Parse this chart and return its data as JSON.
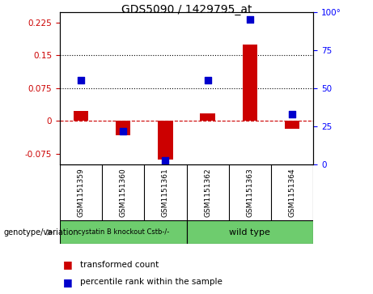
{
  "title": "GDS5090 / 1429795_at",
  "samples": [
    "GSM1151359",
    "GSM1151360",
    "GSM1151361",
    "GSM1151362",
    "GSM1151363",
    "GSM1151364"
  ],
  "transformed_count": [
    0.022,
    -0.032,
    -0.088,
    0.018,
    0.175,
    -0.018
  ],
  "percentile_rank_pct": [
    55,
    22,
    3,
    55,
    95,
    33
  ],
  "ylim_left": [
    -0.1,
    0.25
  ],
  "ylim_right": [
    0,
    100
  ],
  "yticks_left": [
    -0.075,
    0,
    0.075,
    0.15,
    0.225
  ],
  "ytick_labels_left": [
    "-0.075",
    "0",
    "0.075",
    "0.15",
    "0.225"
  ],
  "yticks_right": [
    0,
    25,
    50,
    75,
    100
  ],
  "ytick_labels_right": [
    "0",
    "25",
    "50",
    "75",
    "100°"
  ],
  "hlines": [
    0.075,
    0.15
  ],
  "group1_label": "cystatin B knockout Cstb-/-",
  "group2_label": "wild type",
  "green_color": "#6ECC6E",
  "bar_color": "#CC0000",
  "dot_color": "#0000CC",
  "bar_width": 0.35,
  "dot_size": 35,
  "cell_bg": "#C8C8C8",
  "legend_red_label": "transformed count",
  "legend_blue_label": "percentile rank within the sample",
  "genotype_label": "genotype/variation"
}
